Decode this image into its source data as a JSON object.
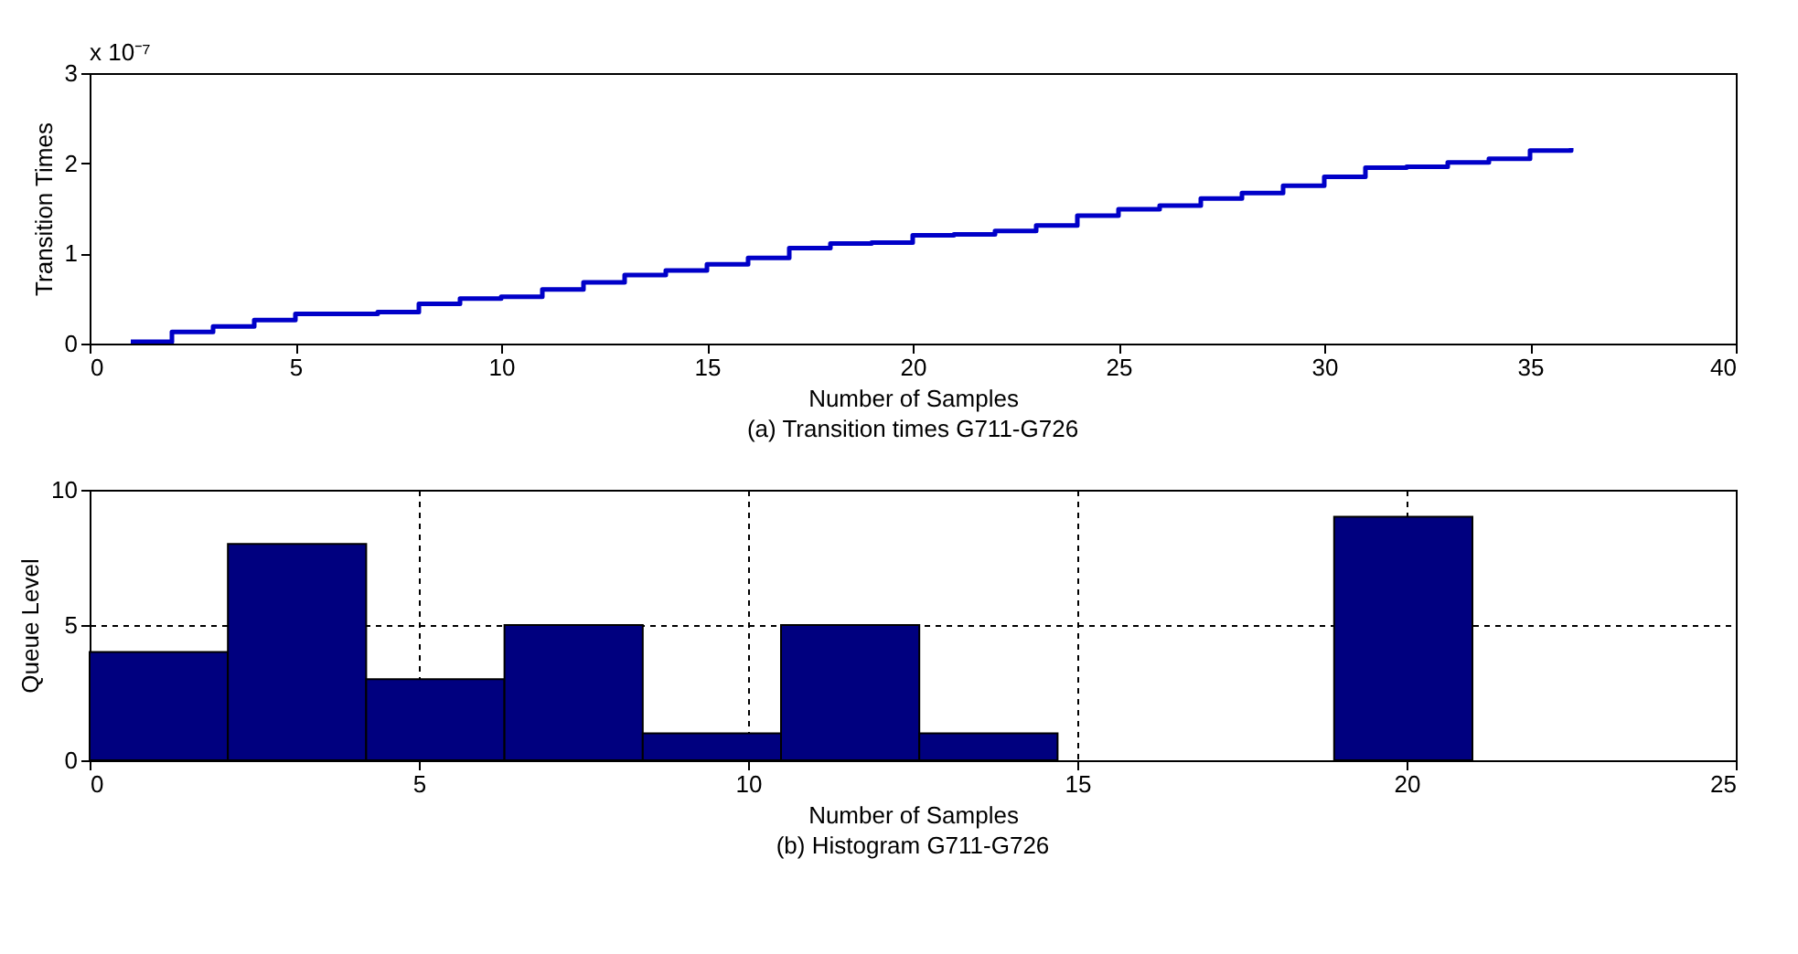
{
  "chart_data": [
    {
      "type": "step",
      "title": "(a) Transition times G711-G726",
      "xlabel": "Number of Samples",
      "ylabel": "Transition Times",
      "annotations": [
        "x 10⁻⁷"
      ],
      "x": [
        1,
        2,
        3,
        4,
        5,
        6,
        7,
        8,
        9,
        10,
        11,
        12,
        13,
        14,
        15,
        16,
        17,
        18,
        19,
        20,
        21,
        22,
        23,
        24,
        25,
        26,
        27,
        28,
        29,
        30,
        31,
        32,
        33,
        34,
        35,
        36
      ],
      "series": [
        {
          "color": "#0000c8",
          "values": [
            0.02,
            0.13,
            0.19,
            0.26,
            0.33,
            0.33,
            0.35,
            0.44,
            0.5,
            0.52,
            0.6,
            0.68,
            0.76,
            0.81,
            0.88,
            0.95,
            1.06,
            1.11,
            1.12,
            1.2,
            1.21,
            1.25,
            1.31,
            1.42,
            1.49,
            1.53,
            1.61,
            1.67,
            1.75,
            1.85,
            1.95,
            1.96,
            2.01,
            2.05,
            2.14,
            2.17
          ]
        }
      ],
      "xlim": [
        0,
        40
      ],
      "xticks": [
        0,
        5,
        10,
        15,
        20,
        25,
        30,
        35,
        40
      ],
      "ylim": [
        0,
        3
      ],
      "yticks": [
        0,
        1,
        2,
        3
      ],
      "grid": false
    },
    {
      "type": "histogram",
      "title": "(b) Histogram G711-G726",
      "xlabel": "Number of Samples",
      "ylabel": "Queue Level",
      "bins": [
        0,
        2.1,
        4.2,
        6.3,
        8.4,
        10.5,
        12.6,
        14.7,
        16.8,
        18.9,
        21
      ],
      "values": [
        4,
        8,
        3,
        5,
        1,
        5,
        1,
        0,
        0,
        9
      ],
      "color": "#00007f",
      "xlim": [
        0,
        25
      ],
      "xticks": [
        0,
        5,
        10,
        15,
        20,
        25
      ],
      "ylim": [
        0,
        10
      ],
      "yticks": [
        0,
        5,
        10
      ],
      "grid": true
    }
  ]
}
